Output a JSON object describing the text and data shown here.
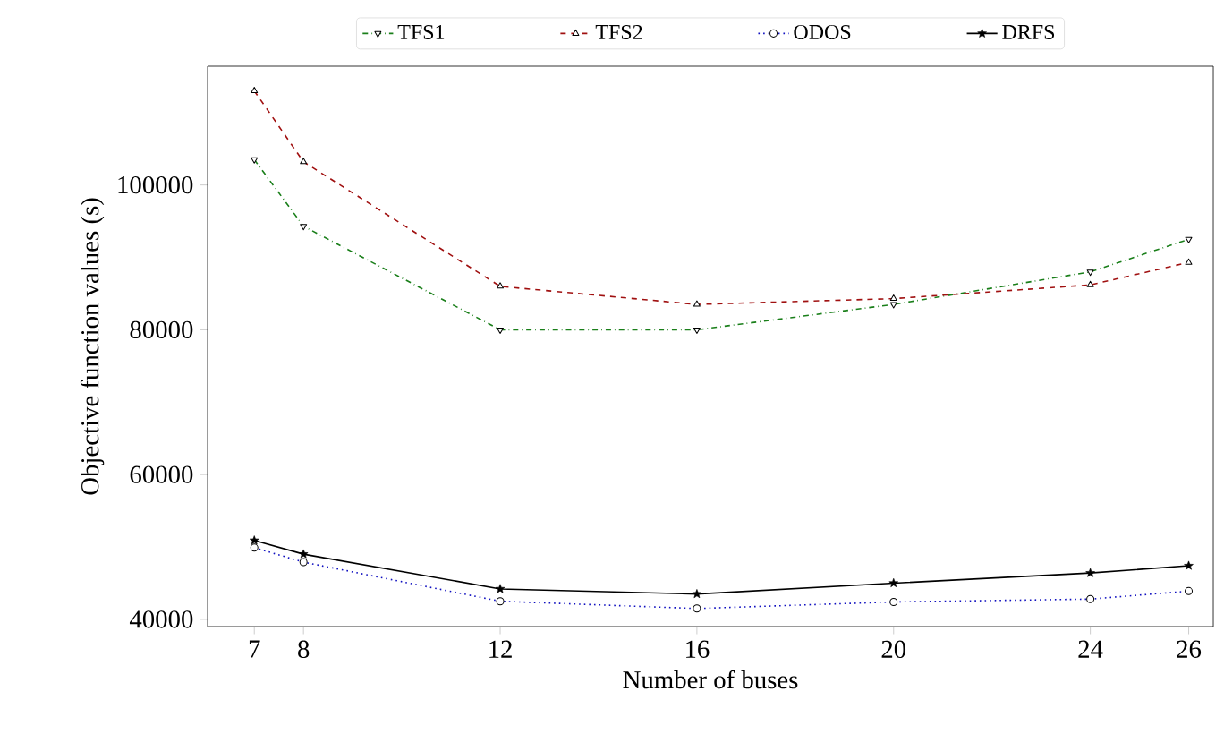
{
  "chart_data": {
    "type": "line",
    "xlabel": "Number of buses",
    "ylabel": "Objective function values (s)",
    "x": [
      7,
      8,
      12,
      16,
      20,
      24,
      26
    ],
    "series": [
      {
        "name": "TFS1",
        "color": "#1a7f1a",
        "line_style": "dashdot",
        "marker": "triangle-down",
        "values": [
          103500,
          94300,
          80000,
          80000,
          83500,
          88000,
          92500
        ]
      },
      {
        "name": "TFS2",
        "color": "#a01010",
        "line_style": "dashed",
        "marker": "triangle",
        "values": [
          113000,
          103200,
          86000,
          83500,
          84300,
          86200,
          89300
        ]
      },
      {
        "name": "ODOS",
        "color": "#1010c0",
        "line_style": "dotted",
        "marker": "circle",
        "values": [
          49900,
          47900,
          42500,
          41500,
          42400,
          42800,
          43900
        ]
      },
      {
        "name": "DRFS",
        "color": "#000000",
        "line_style": "solid",
        "marker": "star",
        "values": [
          50900,
          49000,
          44200,
          43500,
          45000,
          46400,
          47400
        ]
      }
    ],
    "xlim": [
      6.05,
      26.5
    ],
    "ylim": [
      39000,
      116400
    ],
    "xticks": [
      7,
      8,
      12,
      16,
      20,
      24,
      26
    ],
    "yticks": [
      40000,
      60000,
      80000,
      100000
    ],
    "grid": false,
    "legend": "top"
  }
}
